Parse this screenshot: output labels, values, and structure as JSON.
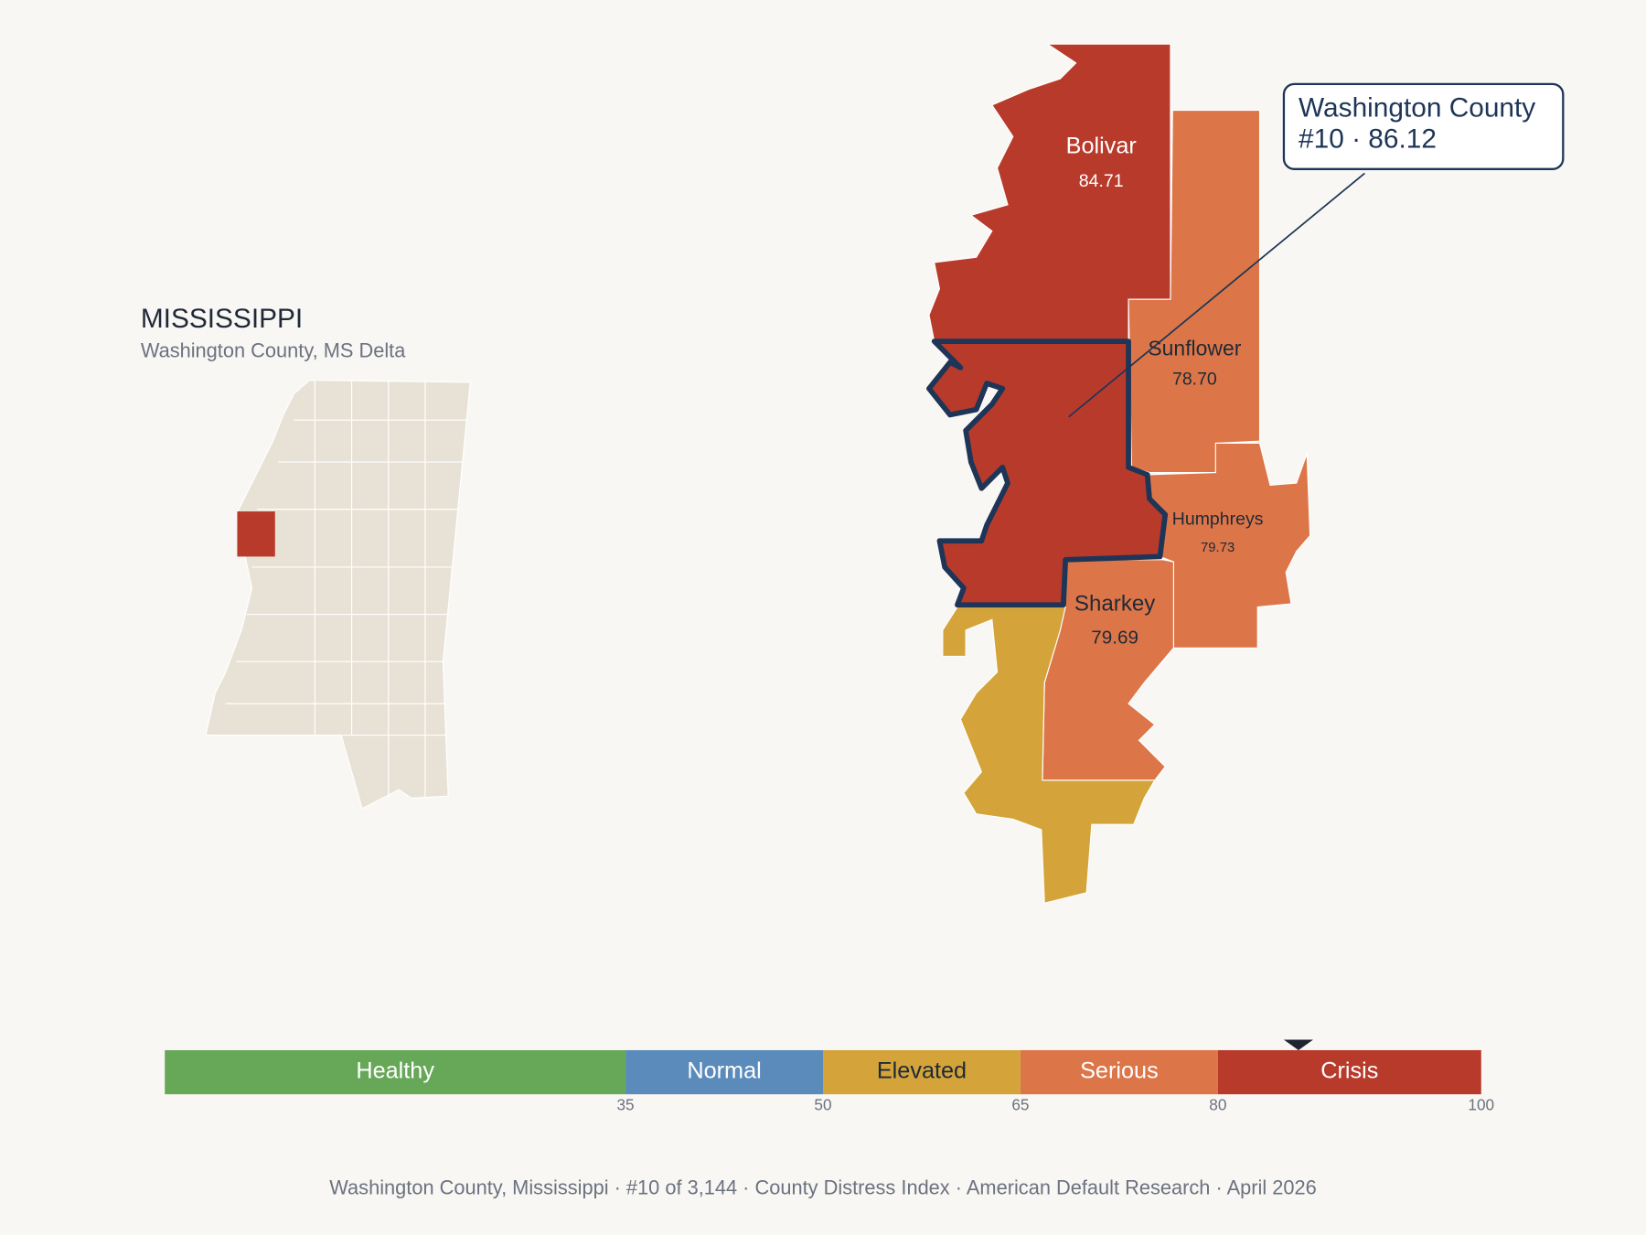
{
  "inset": {
    "title": "MISSISSIPPI",
    "subtitle": "Washington County, MS Delta"
  },
  "callout": {
    "lines": [
      "Washington County",
      "#10 · 86.12"
    ]
  },
  "counties": [
    {
      "name": "Bolivar",
      "score": "84.71"
    },
    {
      "name": "Sunflower",
      "score": "78.70"
    },
    {
      "name": "Humphreys",
      "score": "79.73"
    },
    {
      "name": "Sharkey",
      "score": "79.69"
    }
  ],
  "scale": {
    "lim": [
      0,
      100
    ],
    "ticks": [
      35,
      50,
      65,
      80,
      100
    ],
    "bands": [
      {
        "name": "Healthy",
        "color": "#67a758",
        "text_color": "#ffffff"
      },
      {
        "name": "Normal",
        "color": "#5b8bbb",
        "text_color": "#ffffff"
      },
      {
        "name": "Elevated",
        "color": "#d4a43a",
        "text_color": "#1f2937"
      },
      {
        "name": "Serious",
        "color": "#dc7649",
        "text_color": "#ffffff"
      },
      {
        "name": "Crisis",
        "color": "#b83a2b",
        "text_color": "#ffffff"
      }
    ],
    "marker": 86.12
  },
  "footer": "Washington County, Mississippi  ·  #10 of 3,144  ·  County Distress Index  ·  American Default Research  ·  April 2026"
}
